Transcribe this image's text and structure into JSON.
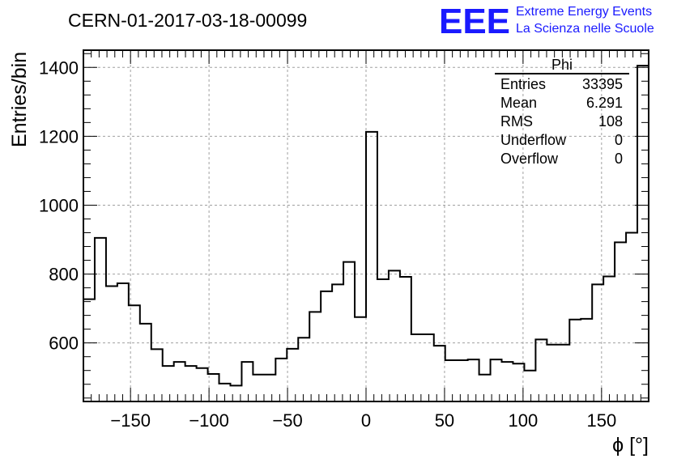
{
  "chart_data": {
    "type": "histogram",
    "title": "CERN-01-2017-03-18-00099",
    "xlabel": "ϕ [°]",
    "ylabel": "Entries/bin",
    "xlim": [
      -180,
      180
    ],
    "ylim": [
      430,
      1450
    ],
    "grid": true,
    "xticks": [
      -150,
      -100,
      -50,
      0,
      50,
      100,
      150
    ],
    "xtick_labels": [
      "−150",
      "−100",
      "−50",
      "0",
      "50",
      "100",
      "150"
    ],
    "yticks": [
      600,
      800,
      1000,
      1200,
      1400
    ],
    "ytick_labels": [
      "600",
      "800",
      "1000",
      "1200",
      "1400"
    ],
    "bin_edges": [
      -180,
      -172.8,
      -165.6,
      -158.4,
      -151.2,
      -144,
      -136.8,
      -129.6,
      -122.4,
      -115.2,
      -108,
      -100.8,
      -93.6,
      -86.4,
      -79.2,
      -72,
      -64.8,
      -57.6,
      -50.4,
      -43.2,
      -36,
      -28.8,
      -21.6,
      -14.4,
      -7.2,
      0,
      7.2,
      14.4,
      21.6,
      28.8,
      36,
      43.2,
      50.4,
      57.6,
      64.8,
      72,
      79.2,
      86.4,
      93.6,
      100.8,
      108,
      115.2,
      122.4,
      129.6,
      136.8,
      144,
      151.2,
      158.4,
      165.6,
      172.8,
      180
    ],
    "values": [
      727,
      905,
      765,
      773,
      709,
      656,
      582,
      533,
      545,
      533,
      527,
      510,
      482,
      476,
      545,
      508,
      508,
      555,
      583,
      615,
      690,
      750,
      770,
      835,
      675,
      1213,
      785,
      810,
      792,
      625,
      625,
      592,
      550,
      550,
      552,
      508,
      552,
      545,
      540,
      520,
      610,
      595,
      595,
      668,
      670,
      770,
      793,
      892,
      920,
      1405
    ],
    "stats_box": {
      "name": "Phi",
      "rows": [
        {
          "label": "Entries",
          "value": "33395"
        },
        {
          "label": "Mean",
          "value": "6.291"
        },
        {
          "label": "RMS",
          "value": "108"
        },
        {
          "label": "Underflow",
          "value": "0"
        },
        {
          "label": "Overflow",
          "value": "0"
        }
      ]
    },
    "logo": {
      "mark": "EEE",
      "line1": "Extreme Energy Events",
      "line2": "La Scienza nelle Scuole",
      "color": "#1a1aff"
    }
  }
}
